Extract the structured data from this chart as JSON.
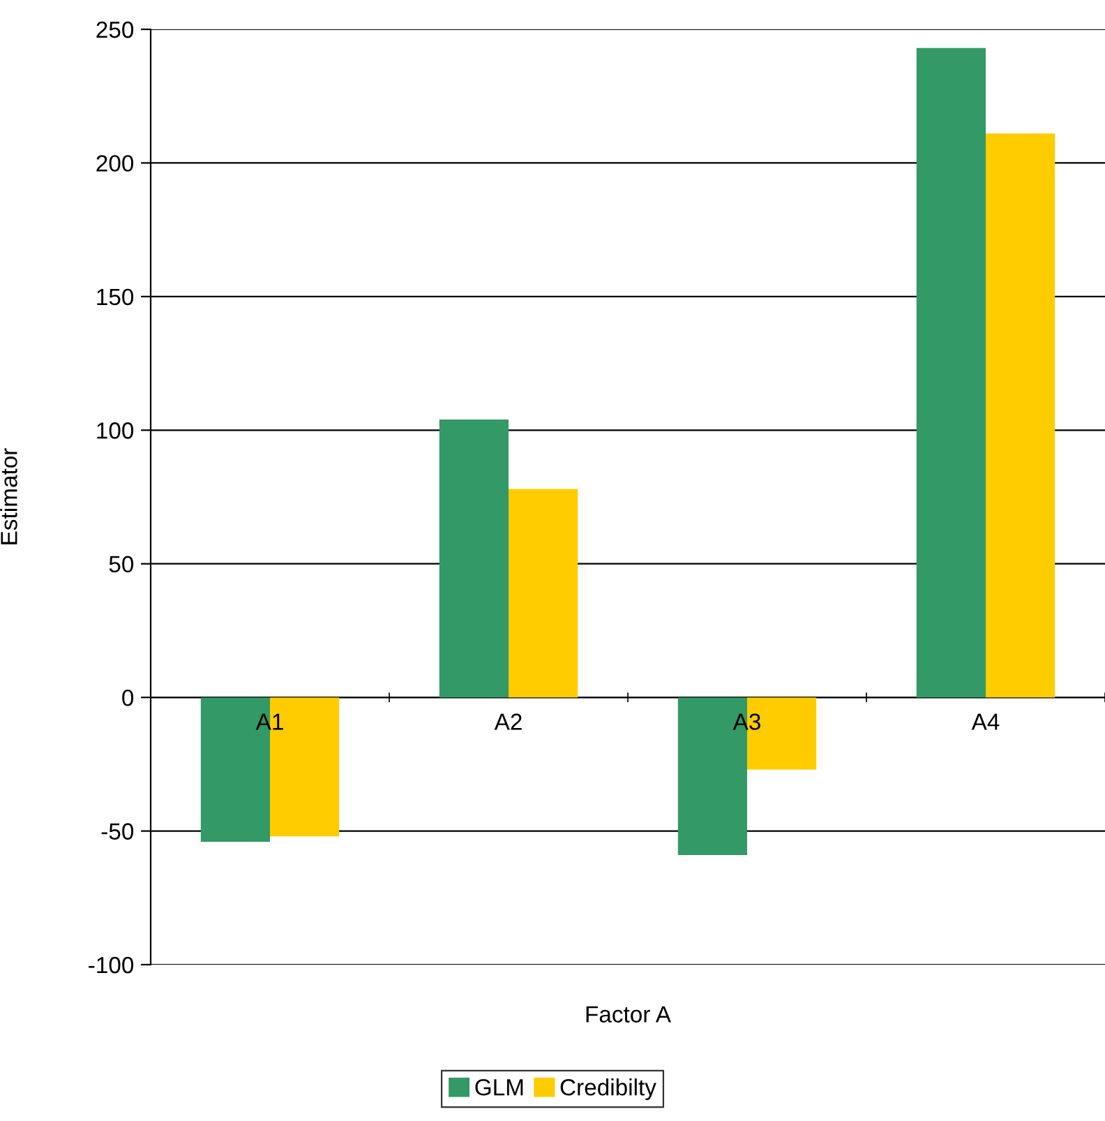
{
  "chart_data": {
    "type": "bar",
    "xlabel": "Factor A",
    "ylabel": "Estimator",
    "categories": [
      "A1",
      "A2",
      "A3",
      "A4"
    ],
    "series": [
      {
        "name": "GLM",
        "color": "#339966",
        "values": [
          -54,
          104,
          -59,
          243
        ]
      },
      {
        "name": "Credibilty",
        "color": "#ffcc00",
        "values": [
          -52,
          78,
          -27,
          211
        ]
      }
    ],
    "ylim": [
      -100,
      250
    ],
    "yticks": [
      -100,
      -50,
      0,
      50,
      100,
      150,
      200,
      250
    ],
    "grid": "y",
    "legend": "bottom"
  }
}
